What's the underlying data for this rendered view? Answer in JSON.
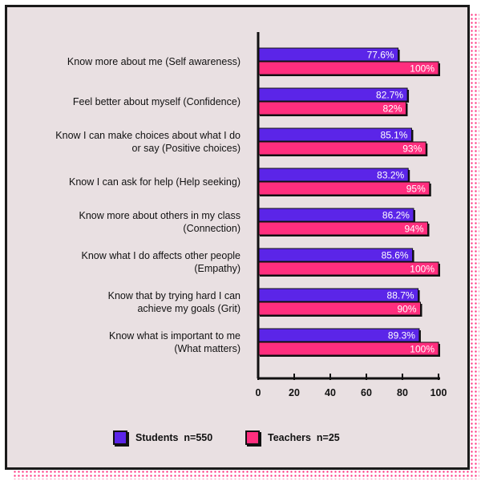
{
  "chart_data": {
    "type": "bar",
    "orientation": "horizontal",
    "categories": [
      "Know more about me (Self awareness)",
      "Feel better about myself (Confidence)",
      "Know I can make choices about what I do or say (Positive choices)",
      "Know I can ask for help (Help seeking)",
      "Know more about others in my class (Connection)",
      "Know what I do affects other people (Empathy)",
      "Know that by trying hard I can achieve my goals (Grit)",
      "Know what is important to me (What matters)"
    ],
    "category_lines": [
      [
        "Know more about me (Self awareness)"
      ],
      [
        "Feel better about myself (Confidence)"
      ],
      [
        "Know I can make choices about what I do",
        "or say (Positive choices)"
      ],
      [
        "Know I can ask for help (Help seeking)"
      ],
      [
        "Know more about others in my class",
        "(Connection)"
      ],
      [
        "Know what I do affects other people",
        "(Empathy)"
      ],
      [
        "Know that by trying hard I can",
        "achieve my goals (Grit)"
      ],
      [
        "Know what is important to me",
        "(What matters)"
      ]
    ],
    "series": [
      {
        "name": "Students  n=550",
        "color": "#5b25e8",
        "values": [
          77.6,
          82.7,
          85.1,
          83.2,
          86.2,
          85.6,
          88.7,
          89.3
        ],
        "labels": [
          "77.6%",
          "82.7%",
          "85.1%",
          "83.2%",
          "86.2%",
          "85.6%",
          "88.7%",
          "89.3%"
        ]
      },
      {
        "name": "Teachers  n=25",
        "color": "#ff2e7e",
        "values": [
          100,
          82,
          93,
          95,
          94,
          100,
          90,
          100
        ],
        "labels": [
          "100%",
          "82%",
          "93%",
          "95%",
          "94%",
          "100%",
          "90%",
          "100%"
        ]
      }
    ],
    "xlim": [
      0,
      100
    ],
    "xticks": [
      "0",
      "20",
      "40",
      "60",
      "80",
      "100"
    ],
    "grid": false,
    "legend_position": "bottom"
  },
  "colors": {
    "background": "#e9e0e2",
    "border": "#1a1a1a",
    "dots": "#ff2e7e"
  }
}
